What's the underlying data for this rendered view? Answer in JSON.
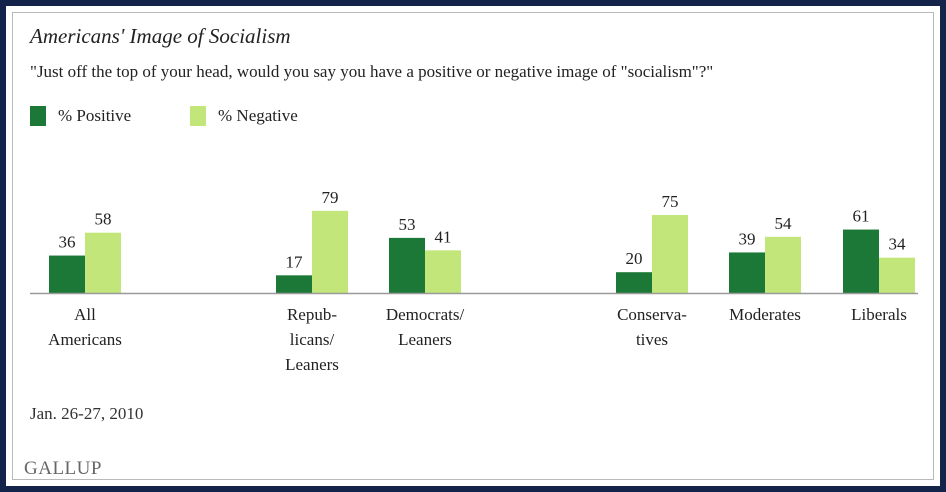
{
  "chart_data": {
    "type": "bar",
    "title": "Americans' Image of Socialism",
    "subtitle": "\"Just off the top of your head, would you say you have a positive or negative image of \"socialism\"?\"",
    "categories": [
      [
        "All",
        "Americans"
      ],
      [
        "Repub-",
        "licans/",
        "Leaners"
      ],
      [
        "Democrats/",
        "Leaners"
      ],
      [
        "Conserva-",
        "tives"
      ],
      [
        "Moderates"
      ],
      [
        "Liberals"
      ]
    ],
    "series": [
      {
        "name": "% Positive",
        "color": "#1b7837",
        "values": [
          36,
          17,
          53,
          20,
          39,
          61
        ]
      },
      {
        "name": "% Negative",
        "color": "#c2e67a",
        "values": [
          58,
          79,
          41,
          75,
          54,
          34
        ]
      }
    ],
    "ylim": [
      0,
      100
    ],
    "grid": false,
    "legend_position": "top-left"
  },
  "footer": {
    "date": "Jan. 26-27, 2010",
    "brand": "GALLUP"
  },
  "colors": {
    "frame": "#14234a",
    "baseline": "#9a9a9a"
  }
}
